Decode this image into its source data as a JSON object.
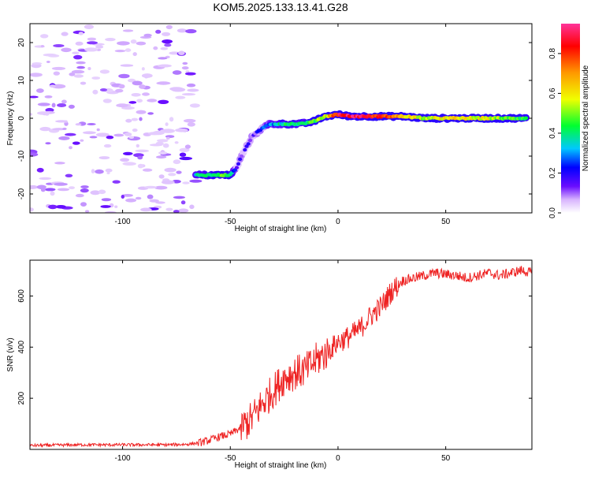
{
  "colors": {
    "snr_line": "#ee2222",
    "background": "#ffffff",
    "axes": "#000000",
    "colormap": [
      "#ffffff",
      "#d8b4fe",
      "#6a0dff",
      "#0000ff",
      "#00c8ff",
      "#00ff30",
      "#f0ff00",
      "#ff9900",
      "#ff0000",
      "#ff3399"
    ]
  },
  "chart_data": [
    {
      "type": "heatmap",
      "title": "KOM5.2025.133.13.41.G28",
      "xlabel": "Height of straight line (km)",
      "ylabel": "Frequency (Hz)",
      "xlim": [
        -143,
        90
      ],
      "ylim": [
        -25,
        25
      ],
      "x_ticks": [
        -100,
        -50,
        0,
        50
      ],
      "x_tick_labels": [
        "-100",
        "-50",
        "0",
        "50"
      ],
      "y_ticks": [
        20,
        10,
        0,
        -10,
        -20
      ],
      "y_tick_labels": [
        "20",
        "10",
        "0",
        "-10",
        "-20"
      ],
      "colorbar": {
        "label": "Normalized spectral amplitude",
        "range": [
          0,
          0.95
        ],
        "ticks": [
          0.0,
          0.2,
          0.4,
          0.6,
          0.8
        ],
        "tick_labels": [
          "0.0",
          "0.2",
          "0.4",
          "0.6",
          "0.8"
        ]
      },
      "ridge": [
        {
          "x": -66,
          "y": -15,
          "amp": 0.35
        },
        {
          "x": -62,
          "y": -15,
          "amp": 0.4
        },
        {
          "x": -58,
          "y": -15,
          "amp": 0.45
        },
        {
          "x": -54,
          "y": -15,
          "amp": 0.5
        },
        {
          "x": -50,
          "y": -15,
          "amp": 0.45
        },
        {
          "x": -47,
          "y": -13,
          "amp": 0.15
        },
        {
          "x": -44,
          "y": -9,
          "amp": 0.12
        },
        {
          "x": -40,
          "y": -5,
          "amp": 0.15
        },
        {
          "x": -36,
          "y": -3,
          "amp": 0.18
        },
        {
          "x": -32,
          "y": -1.5,
          "amp": 0.28
        },
        {
          "x": -25,
          "y": -1.5,
          "amp": 0.4
        },
        {
          "x": -18,
          "y": -1.5,
          "amp": 0.35
        },
        {
          "x": -12,
          "y": -1,
          "amp": 0.45
        },
        {
          "x": -6,
          "y": 0.5,
          "amp": 0.55
        },
        {
          "x": 0,
          "y": 1,
          "amp": 0.85
        },
        {
          "x": 6,
          "y": 0.5,
          "amp": 0.9
        },
        {
          "x": 12,
          "y": 0.5,
          "amp": 0.85
        },
        {
          "x": 20,
          "y": 0.5,
          "amp": 0.8
        },
        {
          "x": 30,
          "y": 0.5,
          "amp": 0.65
        },
        {
          "x": 40,
          "y": 0,
          "amp": 0.55
        },
        {
          "x": 50,
          "y": 0,
          "amp": 0.6
        },
        {
          "x": 60,
          "y": 0,
          "amp": 0.6
        },
        {
          "x": 70,
          "y": 0,
          "amp": 0.55
        },
        {
          "x": 80,
          "y": 0,
          "amp": 0.45
        },
        {
          "x": 88,
          "y": 0,
          "amp": 0.4
        }
      ],
      "noise_region_x": [
        -143,
        -66
      ]
    },
    {
      "type": "line",
      "xlabel": "Height of straight line (km)",
      "ylabel": "SNR (v/v)",
      "xlim": [
        -143,
        90
      ],
      "ylim": [
        0,
        740
      ],
      "x_ticks": [
        -100,
        -50,
        0,
        50
      ],
      "x_tick_labels": [
        "-100",
        "-50",
        "0",
        "50"
      ],
      "y_ticks": [
        200,
        400,
        600
      ],
      "y_tick_labels": [
        "200",
        "400",
        "600"
      ],
      "series": [
        {
          "x": [
            -143,
            -120,
            -100,
            -80,
            -70,
            -65,
            -60,
            -55,
            -50,
            -45,
            -40,
            -35,
            -30,
            -25,
            -20,
            -15,
            -10,
            -5,
            0,
            5,
            10,
            15,
            20,
            25,
            30,
            35,
            40,
            45,
            50,
            55,
            60,
            65,
            70,
            75,
            80,
            85,
            90
          ],
          "y": [
            15,
            18,
            18,
            18,
            20,
            25,
            35,
            50,
            60,
            85,
            120,
            180,
            230,
            280,
            300,
            310,
            350,
            380,
            420,
            440,
            470,
            520,
            560,
            620,
            660,
            670,
            680,
            690,
            685,
            680,
            670,
            680,
            690,
            680,
            690,
            700,
            690
          ]
        }
      ]
    }
  ]
}
